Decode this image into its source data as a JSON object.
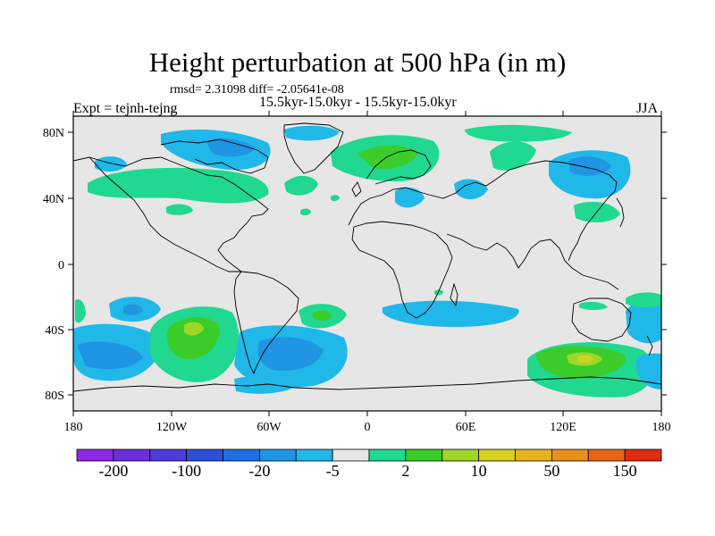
{
  "title": "Height perturbation at 500 hPa (in m)",
  "stats_line": "rmsd= 2.31098 diff= -2.05641e-08",
  "subtitle": "15.5kyr-15.0kyr - 15.5kyr-15.0kyr",
  "left_label": "Expt = tejnh-tejng",
  "right_label": "JJA",
  "axes": {
    "x_ticks": [
      "180",
      "120W",
      "60W",
      "0",
      "60E",
      "120E",
      "180"
    ],
    "y_ticks": [
      "80N",
      "40N",
      "0",
      "40S",
      "80S"
    ]
  },
  "colorbar": {
    "colors": [
      "#8a2be2",
      "#6a2fd9",
      "#4c3ad6",
      "#2d4fd8",
      "#1f6fe0",
      "#1f95e3",
      "#20b8e8",
      "#e6e6e6",
      "#20d890",
      "#3ccc2a",
      "#9ed62a",
      "#d8d020",
      "#e6b41c",
      "#e8901a",
      "#e86418",
      "#e02c12"
    ],
    "labels": [
      "-200",
      "-100",
      "-20",
      "-5",
      "2",
      "10",
      "50",
      "150"
    ]
  },
  "colors": {
    "land_background": "#e6e6e6",
    "coastline": "#000000"
  }
}
